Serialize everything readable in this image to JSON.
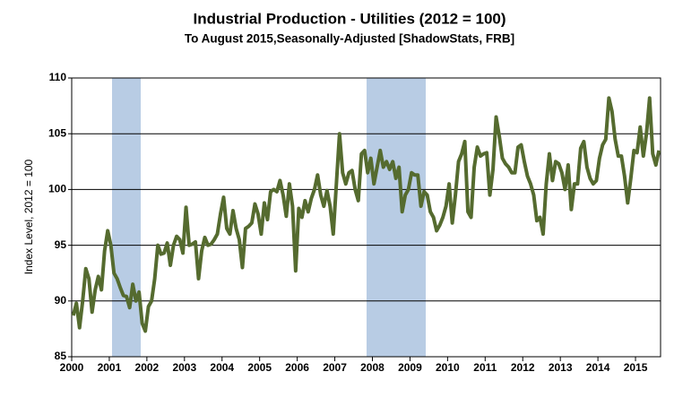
{
  "chart_data": {
    "type": "line",
    "title": "Industrial Production - Utilities (2012 = 100)",
    "subtitle": "To August 2015,Seasonally-Adjusted [ShadowStats, FRB]",
    "y_label": "Index Level, 2012 = 100",
    "ylim": [
      85,
      110
    ],
    "yticks": [
      85,
      90,
      95,
      100,
      105,
      110
    ],
    "grid": true,
    "categories": [
      "2000",
      null,
      null,
      null,
      null,
      null,
      null,
      null,
      null,
      null,
      null,
      null,
      "2001",
      null,
      null,
      null,
      null,
      null,
      null,
      null,
      null,
      null,
      null,
      null,
      "2002",
      null,
      null,
      null,
      null,
      null,
      null,
      null,
      null,
      null,
      null,
      null,
      "2003",
      null,
      null,
      null,
      null,
      null,
      null,
      null,
      null,
      null,
      null,
      null,
      "2004",
      null,
      null,
      null,
      null,
      null,
      null,
      null,
      null,
      null,
      null,
      null,
      "2005",
      null,
      null,
      null,
      null,
      null,
      null,
      null,
      null,
      null,
      null,
      null,
      "2006",
      null,
      null,
      null,
      null,
      null,
      null,
      null,
      null,
      null,
      null,
      null,
      "2007",
      null,
      null,
      null,
      null,
      null,
      null,
      null,
      null,
      null,
      null,
      null,
      "2008",
      null,
      null,
      null,
      null,
      null,
      null,
      null,
      null,
      null,
      null,
      null,
      "2009",
      null,
      null,
      null,
      null,
      null,
      null,
      null,
      null,
      null,
      null,
      null,
      "2010",
      null,
      null,
      null,
      null,
      null,
      null,
      null,
      null,
      null,
      null,
      null,
      "2011",
      null,
      null,
      null,
      null,
      null,
      null,
      null,
      null,
      null,
      null,
      null,
      "2012",
      null,
      null,
      null,
      null,
      null,
      null,
      null,
      null,
      null,
      null,
      null,
      "2013",
      null,
      null,
      null,
      null,
      null,
      null,
      null,
      null,
      null,
      null,
      null,
      "2014",
      null,
      null,
      null,
      null,
      null,
      null,
      null,
      null,
      null,
      null,
      null,
      "2015",
      null,
      null,
      null,
      null,
      null,
      null,
      null
    ],
    "series": [
      {
        "color": "#556b2f",
        "values": [
          88.7,
          89.8,
          87.6,
          90,
          92.9,
          92,
          89,
          91,
          92.2,
          91,
          94.5,
          96.3,
          95,
          92.5,
          92,
          91.2,
          90.5,
          90.4,
          89.4,
          91.5,
          90,
          90.8,
          88,
          87.3,
          89.5,
          90,
          92,
          95,
          94.2,
          94.3,
          95.2,
          93.2,
          95,
          95.8,
          95.5,
          94.3,
          98.4,
          95,
          95.1,
          95.3,
          92,
          94.5,
          95.7,
          95,
          95.1,
          95.5,
          96,
          97.8,
          99.3,
          96.5,
          96,
          98.1,
          96.5,
          95.5,
          93,
          96.5,
          96.7,
          97,
          98.7,
          97.8,
          96,
          98.8,
          97.3,
          99.8,
          100,
          99.8,
          100.8,
          99.5,
          97.6,
          100.5,
          98.5,
          92.7,
          98.3,
          97.5,
          99,
          98,
          99.2,
          100,
          101.3,
          99.5,
          98.5,
          99.9,
          98.5,
          96,
          100.5,
          105,
          101.5,
          100.5,
          101.5,
          101.7,
          100,
          99,
          103.2,
          103.5,
          101.5,
          102.8,
          100.5,
          102,
          103.5,
          102,
          102.5,
          101.8,
          102.5,
          101,
          102,
          98,
          99.5,
          100,
          101.5,
          101.3,
          101.3,
          98.5,
          99.8,
          99.5,
          98,
          97.5,
          96.3,
          96.8,
          97.5,
          98.5,
          100.5,
          97,
          99.5,
          102.5,
          103.2,
          104.3,
          98,
          97.5,
          102,
          103.8,
          103,
          103.2,
          103.3,
          99.5,
          101.8,
          106.5,
          104.8,
          102.8,
          102.3,
          102,
          101.5,
          101.5,
          103.8,
          104,
          102.5,
          101.2,
          100.5,
          99.5,
          97.2,
          97.5,
          96,
          100.5,
          103.2,
          100.8,
          102.5,
          102.3,
          101.5,
          100,
          102.2,
          98.2,
          100.5,
          100.5,
          103.7,
          104.3,
          102,
          101,
          100.5,
          100.8,
          102.8,
          104,
          104.5,
          108.2,
          107,
          104.5,
          103,
          103,
          101.2,
          98.8,
          101,
          103.5,
          103.3,
          105.6,
          103,
          105,
          108.2,
          103.2,
          102.2,
          103.5
        ]
      }
    ]
  }
}
